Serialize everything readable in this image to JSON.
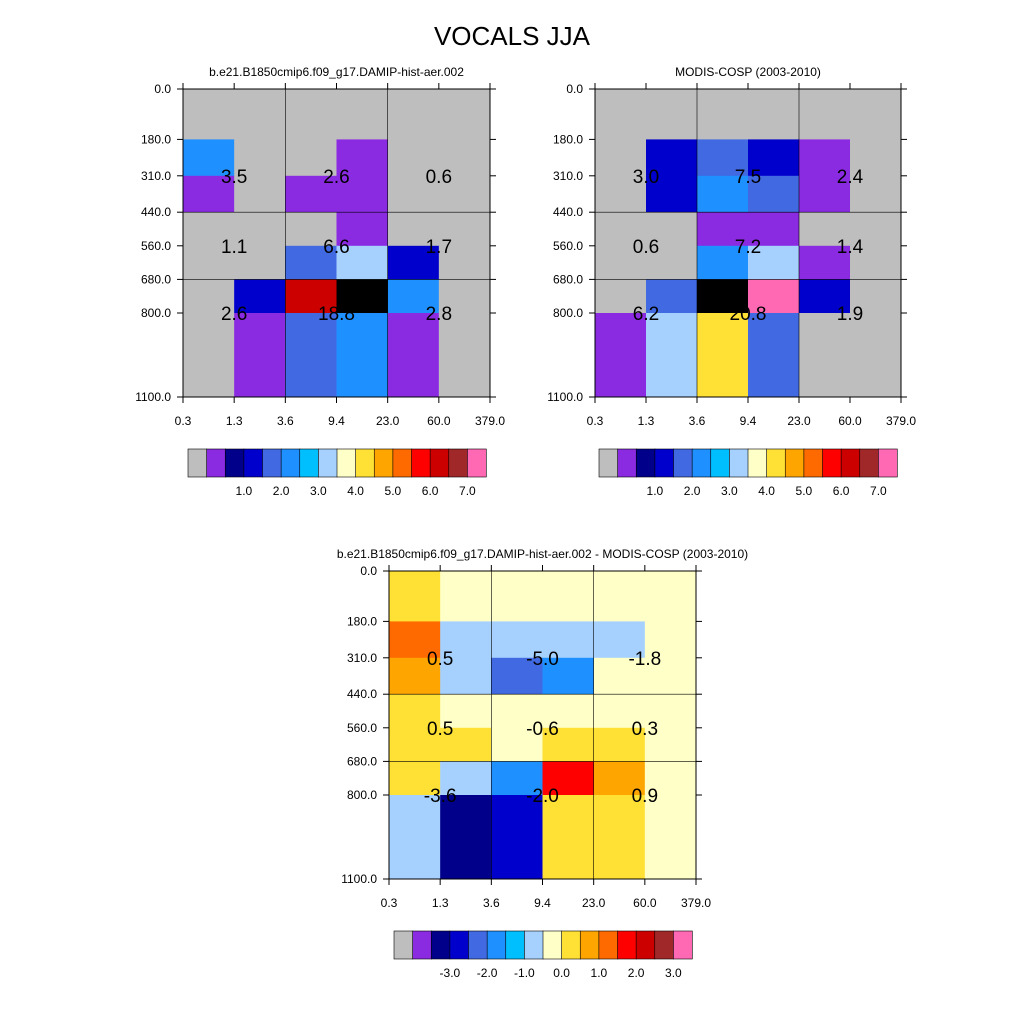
{
  "title": "VOCALS JJA",
  "chart_data": [
    {
      "type": "heatmap",
      "title": "b.e21.B1850cmip6.f09_g17.DAMIP-hist-aer.002",
      "x_ticks": [
        "0.3",
        "1.3",
        "3.6",
        "9.4",
        "23.0",
        "60.0",
        "379.0"
      ],
      "y_ticks": [
        "0.0",
        "180.0",
        "310.0",
        "440.0",
        "560.0",
        "680.0",
        "800.0",
        "1100.0"
      ],
      "x_label": "",
      "y_label": "",
      "cells": [
        [
          0,
          0,
          0,
          0,
          0,
          0
        ],
        [
          5,
          0,
          0,
          1,
          0,
          0
        ],
        [
          1,
          0,
          1,
          1,
          0,
          0
        ],
        [
          0,
          0,
          0,
          1,
          0,
          0
        ],
        [
          0,
          0,
          4,
          7,
          3,
          0
        ],
        [
          0,
          3,
          13,
          16,
          5,
          0
        ],
        [
          0,
          1,
          4,
          5,
          1,
          0
        ]
      ],
      "annotations": [
        {
          "row": 0,
          "col": 0,
          "text": "3.5"
        },
        {
          "row": 0,
          "col": 1,
          "text": "2.6"
        },
        {
          "row": 0,
          "col": 2,
          "text": "0.6"
        },
        {
          "row": 1,
          "col": 0,
          "text": "1.1"
        },
        {
          "row": 1,
          "col": 1,
          "text": "6.6"
        },
        {
          "row": 1,
          "col": 2,
          "text": "1.7"
        },
        {
          "row": 2,
          "col": 0,
          "text": "2.6"
        },
        {
          "row": 2,
          "col": 1,
          "text": "18.8"
        },
        {
          "row": 2,
          "col": 2,
          "text": "2.8"
        }
      ],
      "colorbar_labels": [
        "1.0",
        "2.0",
        "3.0",
        "4.0",
        "5.0",
        "6.0",
        "7.0"
      ]
    },
    {
      "type": "heatmap",
      "title": "MODIS-COSP (2003-2010)",
      "x_ticks": [
        "0.3",
        "1.3",
        "3.6",
        "9.4",
        "23.0",
        "60.0",
        "379.0"
      ],
      "y_ticks": [
        "0.0",
        "180.0",
        "310.0",
        "440.0",
        "560.0",
        "680.0",
        "800.0",
        "1100.0"
      ],
      "x_label": "",
      "y_label": "",
      "cells": [
        [
          0,
          0,
          0,
          0,
          0,
          0
        ],
        [
          0,
          3,
          4,
          3,
          1,
          0
        ],
        [
          0,
          3,
          5,
          4,
          1,
          0
        ],
        [
          0,
          0,
          1,
          1,
          0,
          0
        ],
        [
          0,
          0,
          5,
          7,
          1,
          0
        ],
        [
          0,
          4,
          16,
          15,
          3,
          0
        ],
        [
          1,
          7,
          9,
          4,
          0,
          0
        ]
      ],
      "annotations": [
        {
          "row": 0,
          "col": 0,
          "text": "3.0"
        },
        {
          "row": 0,
          "col": 1,
          "text": "7.5"
        },
        {
          "row": 0,
          "col": 2,
          "text": "2.4"
        },
        {
          "row": 1,
          "col": 0,
          "text": "0.6"
        },
        {
          "row": 1,
          "col": 1,
          "text": "7.2"
        },
        {
          "row": 1,
          "col": 2,
          "text": "1.4"
        },
        {
          "row": 2,
          "col": 0,
          "text": "6.2"
        },
        {
          "row": 2,
          "col": 1,
          "text": "20.8"
        },
        {
          "row": 2,
          "col": 2,
          "text": "1.9"
        }
      ],
      "colorbar_labels": [
        "1.0",
        "2.0",
        "3.0",
        "4.0",
        "5.0",
        "6.0",
        "7.0"
      ]
    },
    {
      "type": "heatmap",
      "title": "b.e21.B1850cmip6.f09_g17.DAMIP-hist-aer.002 - MODIS-COSP (2003-2010)",
      "x_ticks": [
        "0.3",
        "1.3",
        "3.6",
        "9.4",
        "23.0",
        "60.0",
        "379.0"
      ],
      "y_ticks": [
        "0.0",
        "180.0",
        "310.0",
        "440.0",
        "560.0",
        "680.0",
        "800.0",
        "1100.0"
      ],
      "x_label": "",
      "y_label": "",
      "cells": [
        [
          9,
          8,
          8,
          8,
          8,
          8
        ],
        [
          11,
          7,
          7,
          7,
          7,
          8
        ],
        [
          10,
          7,
          4,
          5,
          8,
          8
        ],
        [
          9,
          8,
          8,
          8,
          8,
          8
        ],
        [
          9,
          9,
          8,
          9,
          9,
          8
        ],
        [
          9,
          7,
          5,
          12,
          10,
          8
        ],
        [
          7,
          2,
          3,
          9,
          9,
          8
        ]
      ],
      "annotations": [
        {
          "row": 0,
          "col": 0,
          "text": "0.5"
        },
        {
          "row": 0,
          "col": 1,
          "text": "-5.0"
        },
        {
          "row": 0,
          "col": 2,
          "text": "-1.8"
        },
        {
          "row": 1,
          "col": 0,
          "text": "0.5"
        },
        {
          "row": 1,
          "col": 1,
          "text": "-0.6"
        },
        {
          "row": 1,
          "col": 2,
          "text": "0.3"
        },
        {
          "row": 2,
          "col": 0,
          "text": "-3.6"
        },
        {
          "row": 2,
          "col": 1,
          "text": "-2.0"
        },
        {
          "row": 2,
          "col": 2,
          "text": "0.9"
        }
      ],
      "colorbar_labels": [
        "-3.0",
        "-2.0",
        "-1.0",
        "0.0",
        "1.0",
        "2.0",
        "3.0"
      ]
    }
  ],
  "colors": {
    "palette": [
      "#bebebe",
      "#8a2be2",
      "#00008b",
      "#0000cd",
      "#4169e1",
      "#1e90ff",
      "#00bfff",
      "#a6d1ff",
      "#ffffc8",
      "#ffe135",
      "#ffa500",
      "#ff6a00",
      "#ff0000",
      "#cd0000",
      "#a02828",
      "#ff69b4"
    ],
    "grid": "#000000"
  }
}
